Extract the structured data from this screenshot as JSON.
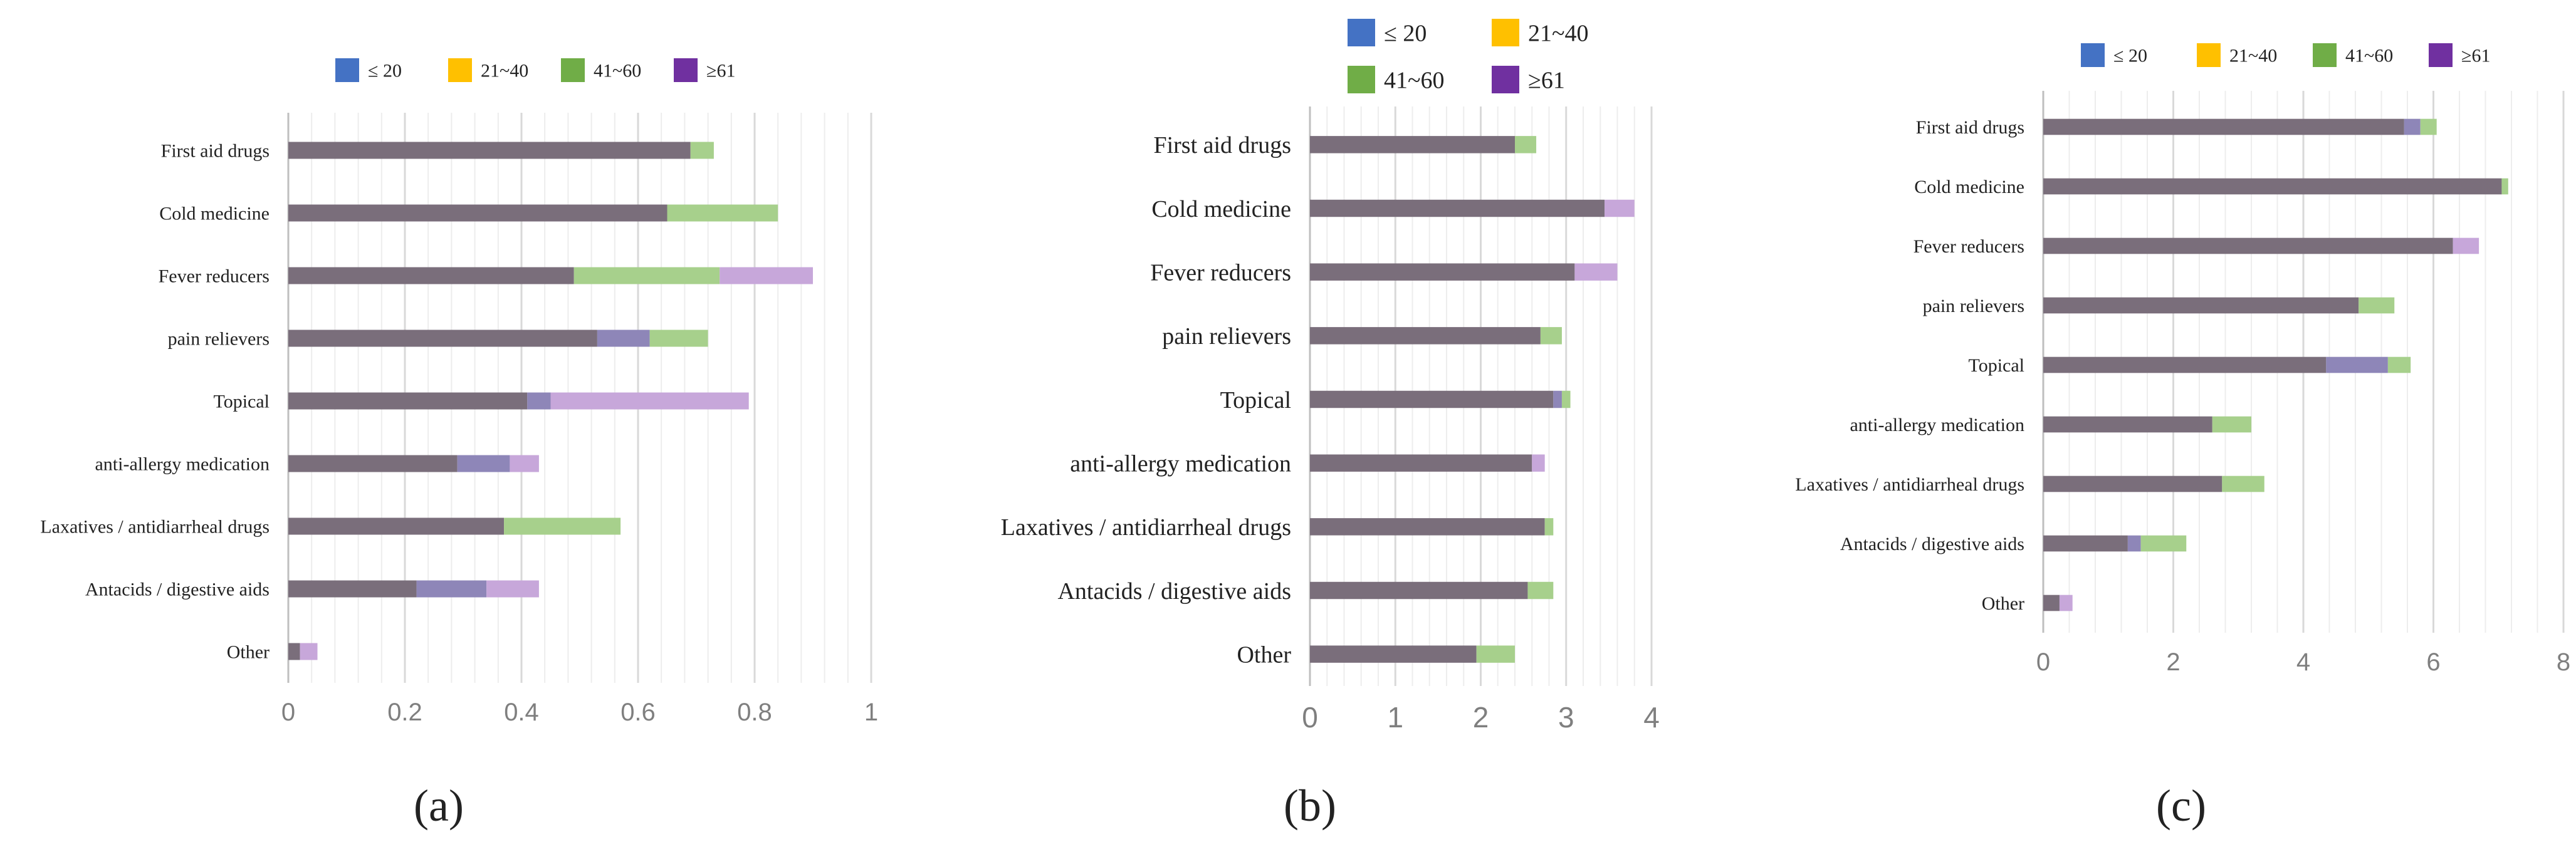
{
  "chart_data": [
    {
      "type": "bar",
      "orientation": "horizontal",
      "stacked": true,
      "panel_label": "a",
      "categories": [
        "First aid drugs",
        "Cold medicine",
        "Fever reducers",
        "pain relievers",
        "Topical",
        "anti-allergy medication",
        "Laxatives / antidiarrheal drugs",
        "Antacids / digestive aids",
        "Other"
      ],
      "legend": [
        "≤ 20",
        "21~40",
        "41~60",
        "≥61"
      ],
      "legend_position": "top",
      "series": [
        {
          "name": "≤ 20",
          "values": [
            0.0,
            0.0,
            0.0,
            0.09,
            0.04,
            0.09,
            0.0,
            0.12,
            0.0
          ]
        },
        {
          "name": "21~40",
          "values": [
            0.69,
            0.65,
            0.49,
            0.53,
            0.41,
            0.29,
            0.37,
            0.22,
            0.02
          ]
        },
        {
          "name": "41~60",
          "values": [
            0.04,
            0.19,
            0.25,
            0.1,
            0.0,
            0.0,
            0.2,
            0.0,
            0.0
          ]
        },
        {
          "name": "≥61",
          "values": [
            0.0,
            0.0,
            0.16,
            0.0,
            0.34,
            0.05,
            0.0,
            0.09,
            0.03
          ]
        }
      ],
      "xlim": [
        0,
        1
      ],
      "xticks": [
        "0",
        "0.2",
        "0.4",
        "0.6",
        "0.8",
        "1"
      ],
      "grid": true
    },
    {
      "type": "bar",
      "orientation": "horizontal",
      "stacked": true,
      "panel_label": "b",
      "categories": [
        "First aid drugs",
        "Cold medicine",
        "Fever reducers",
        "pain relievers",
        "Topical",
        "anti-allergy medication",
        "Laxatives / antidiarrheal drugs",
        "Antacids / digestive aids",
        "Other"
      ],
      "legend": [
        "≤ 20",
        "21~40",
        "41~60",
        "≥61"
      ],
      "legend_position": "top",
      "series": [
        {
          "name": "≤ 20",
          "values": [
            0.0,
            0.0,
            0.0,
            0.0,
            0.1,
            0.0,
            0.0,
            0.0,
            0.0
          ]
        },
        {
          "name": "21~40",
          "values": [
            2.4,
            3.45,
            3.1,
            2.7,
            2.85,
            2.6,
            2.75,
            2.55,
            1.95
          ]
        },
        {
          "name": "41~60",
          "values": [
            0.25,
            0.0,
            0.0,
            0.25,
            0.1,
            0.0,
            0.1,
            0.3,
            0.45
          ]
        },
        {
          "name": "≥61",
          "values": [
            0.0,
            0.35,
            0.5,
            0.0,
            0.0,
            0.15,
            0.0,
            0.0,
            0.0
          ]
        }
      ],
      "xlim": [
        0,
        4
      ],
      "xticks": [
        "0",
        "1",
        "2",
        "3",
        "4"
      ],
      "grid": true
    },
    {
      "type": "bar",
      "orientation": "horizontal",
      "stacked": true,
      "panel_label": "c",
      "categories": [
        "First aid drugs",
        "Cold medicine",
        "Fever reducers",
        "pain relievers",
        "Topical",
        "anti-allergy medication",
        "Laxatives / antidiarrheal drugs",
        "Antacids / digestive aids",
        "Other"
      ],
      "legend": [
        "≤ 20",
        "21~40",
        "41~60",
        "≥61"
      ],
      "legend_position": "top",
      "series": [
        {
          "name": "≤ 20",
          "values": [
            0.25,
            0.0,
            0.0,
            0.0,
            0.95,
            0.0,
            0.0,
            0.2,
            0.0
          ]
        },
        {
          "name": "21~40",
          "values": [
            5.55,
            7.05,
            6.3,
            4.85,
            4.35,
            2.6,
            2.75,
            1.3,
            0.25
          ]
        },
        {
          "name": "41~60",
          "values": [
            0.25,
            0.1,
            0.0,
            0.55,
            0.35,
            0.6,
            0.65,
            0.7,
            0.0
          ]
        },
        {
          "name": "≥61",
          "values": [
            0.0,
            0.0,
            0.4,
            0.0,
            0.0,
            0.0,
            0.0,
            0.0,
            0.2
          ]
        }
      ],
      "xlim": [
        0,
        8
      ],
      "xticks": [
        "0",
        "2",
        "4",
        "6",
        "8"
      ],
      "grid": true
    }
  ],
  "labels": {
    "a": "(a)",
    "b": "(b)",
    "c": "(c)"
  },
  "colors": {
    "legend": [
      "#4472c4",
      "#ffc000",
      "#70ad47",
      "#7030a0"
    ],
    "base_bar": "#7a6e7b",
    "seg1": "#8e86b8",
    "seg2": "#a89596",
    "seg3": "#a7d08c",
    "seg4": "#c7a7da",
    "axis": "#bfbfbf",
    "grid": "#d9d9d9",
    "tick_text": "#7f7f7f",
    "label_text": "#222222"
  }
}
